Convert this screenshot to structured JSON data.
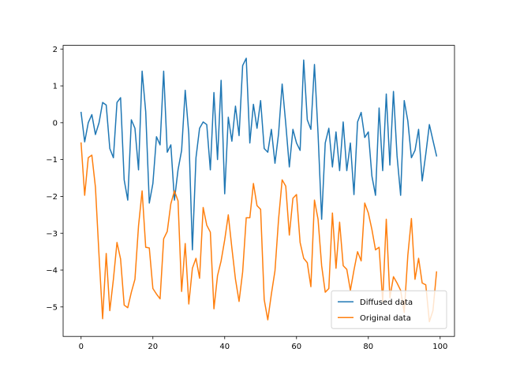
{
  "chart_data": {
    "type": "line",
    "title": "",
    "xlabel": "",
    "ylabel": "",
    "xlim": [
      -5,
      104
    ],
    "ylim": [
      -5.8,
      2.1
    ],
    "xticks": [
      0,
      20,
      40,
      60,
      80,
      100
    ],
    "yticks": [
      2,
      1,
      0,
      -1,
      -2,
      -3,
      -4,
      -5
    ],
    "grid": false,
    "legend_position": "lower-right",
    "series": [
      {
        "name": "Diffused data",
        "color": "#1f77b4",
        "x": [
          0,
          1,
          2,
          3,
          4,
          5,
          6,
          7,
          8,
          9,
          10,
          11,
          12,
          13,
          14,
          15,
          16,
          17,
          18,
          19,
          20,
          21,
          22,
          23,
          24,
          25,
          26,
          27,
          28,
          29,
          30,
          31,
          32,
          33,
          34,
          35,
          36,
          37,
          38,
          39,
          40,
          41,
          42,
          43,
          44,
          45,
          46,
          47,
          48,
          49,
          50,
          51,
          52,
          53,
          54,
          55,
          56,
          57,
          58,
          59,
          60,
          61,
          62,
          63,
          64,
          65,
          66,
          67,
          68,
          69,
          70,
          71,
          72,
          73,
          74,
          75,
          76,
          77,
          78,
          79,
          80,
          81,
          82,
          83,
          84,
          85,
          86,
          87,
          88,
          89,
          90,
          91,
          92,
          93,
          94,
          95,
          96,
          97,
          98,
          99
        ],
        "values": [
          0.28,
          -0.52,
          0.0,
          0.22,
          -0.32,
          0.0,
          0.55,
          0.48,
          -0.7,
          -0.95,
          0.55,
          0.68,
          -1.55,
          -2.1,
          0.08,
          -0.15,
          -1.28,
          1.4,
          0.3,
          -2.18,
          -1.65,
          -0.38,
          -0.6,
          1.4,
          -0.8,
          -0.6,
          -2.1,
          -1.28,
          -0.75,
          0.88,
          -0.3,
          -3.45,
          -0.95,
          -0.15,
          0.02,
          -0.05,
          -1.28,
          0.82,
          -1.0,
          1.15,
          -1.93,
          0.15,
          -0.5,
          0.45,
          -0.35,
          1.55,
          1.75,
          -0.55,
          0.5,
          -0.15,
          0.6,
          -0.7,
          -0.8,
          -0.18,
          -1.1,
          -0.3,
          1.05,
          -0.02,
          -1.2,
          -0.18,
          -0.55,
          -0.75,
          1.7,
          0.08,
          -0.18,
          1.58,
          -0.3,
          -2.62,
          -0.55,
          -0.15,
          -1.2,
          -0.25,
          -1.3,
          0.02,
          -1.3,
          -0.55,
          -1.95,
          0.02,
          0.28,
          -0.4,
          -0.25,
          -1.45,
          -1.97,
          0.4,
          -1.3,
          0.78,
          -1.15,
          0.85,
          -0.9,
          -1.97,
          0.6,
          0.05,
          -0.95,
          -0.75,
          -0.18,
          -1.58,
          -0.85,
          -0.05,
          -0.48,
          -0.9
        ]
      },
      {
        "name": "Original data",
        "color": "#ff7f0e",
        "x": [
          0,
          1,
          2,
          3,
          4,
          5,
          6,
          7,
          8,
          9,
          10,
          11,
          12,
          13,
          14,
          15,
          16,
          17,
          18,
          19,
          20,
          21,
          22,
          23,
          24,
          25,
          26,
          27,
          28,
          29,
          30,
          31,
          32,
          33,
          34,
          35,
          36,
          37,
          38,
          39,
          40,
          41,
          42,
          43,
          44,
          45,
          46,
          47,
          48,
          49,
          50,
          51,
          52,
          53,
          54,
          55,
          56,
          57,
          58,
          59,
          60,
          61,
          62,
          63,
          64,
          65,
          66,
          67,
          68,
          69,
          70,
          71,
          72,
          73,
          74,
          75,
          76,
          77,
          78,
          79,
          80,
          81,
          82,
          83,
          84,
          85,
          86,
          87,
          88,
          89,
          90,
          91,
          92,
          93,
          94,
          95,
          96,
          97,
          98,
          99
        ],
        "values": [
          -0.55,
          -1.97,
          -0.95,
          -0.88,
          -1.75,
          -3.6,
          -5.32,
          -3.55,
          -5.1,
          -4.25,
          -3.25,
          -3.7,
          -4.95,
          -5.02,
          -4.6,
          -4.25,
          -2.8,
          -1.85,
          -3.38,
          -3.4,
          -4.5,
          -4.65,
          -4.78,
          -3.15,
          -2.95,
          -2.2,
          -1.85,
          -2.12,
          -4.58,
          -3.28,
          -4.92,
          -3.95,
          -3.68,
          -4.22,
          -2.3,
          -2.78,
          -2.97,
          -5.05,
          -4.15,
          -3.75,
          -3.18,
          -2.5,
          -3.4,
          -4.25,
          -4.85,
          -4.05,
          -2.58,
          -2.58,
          -1.65,
          -2.25,
          -2.35,
          -4.8,
          -5.35,
          -4.65,
          -4.02,
          -2.62,
          -1.55,
          -1.72,
          -3.05,
          -2.05,
          -1.95,
          -3.25,
          -3.68,
          -3.8,
          -4.45,
          -2.1,
          -2.62,
          -3.88,
          -4.6,
          -4.5,
          -2.45,
          -3.95,
          -2.7,
          -3.88,
          -3.98,
          -4.55,
          -4.0,
          -3.5,
          -3.75,
          -2.18,
          -2.45,
          -2.9,
          -3.45,
          -3.38,
          -4.85,
          -2.62,
          -4.75,
          -4.18,
          -4.35,
          -4.55,
          -5.15,
          -3.6,
          -2.6,
          -4.25,
          -3.68,
          -4.35,
          -4.4,
          -5.4,
          -5.1,
          -4.05
        ]
      }
    ]
  }
}
